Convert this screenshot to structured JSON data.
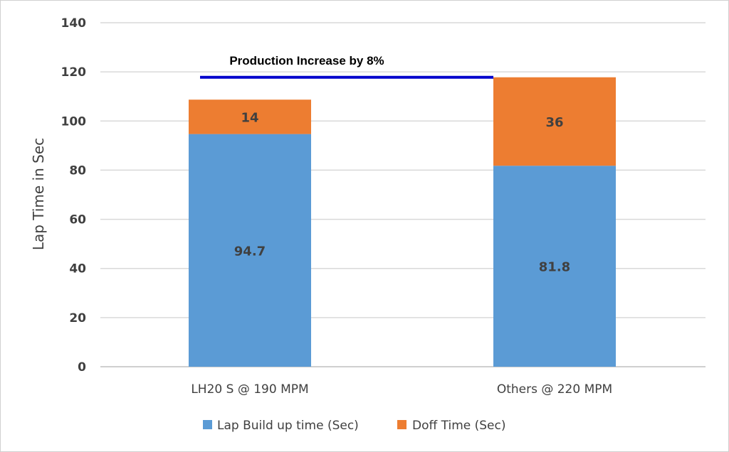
{
  "chart_data": {
    "type": "bar",
    "stacked": true,
    "categories": [
      "LH20 S @ 190 MPM",
      "Others @ 220 MPM"
    ],
    "series": [
      {
        "name": "Lap Build up time (Sec)",
        "values": [
          94.7,
          81.8
        ],
        "color": "#5b9bd5",
        "labels": [
          "94.7",
          "81.8"
        ]
      },
      {
        "name": "Doff Time (Sec)",
        "values": [
          14,
          36
        ],
        "color": "#ed7d31",
        "labels": [
          "14",
          "36"
        ]
      }
    ],
    "title": "",
    "xlabel": "",
    "ylabel": "Lap Time in Sec",
    "ylim": [
      0,
      140
    ],
    "yticks": [
      0,
      20,
      40,
      60,
      80,
      100,
      120,
      140
    ],
    "ytick_labels": [
      "0",
      "20",
      "40",
      "60",
      "80",
      "100",
      "120",
      "140"
    ],
    "grid": true,
    "legend_position": "bottom",
    "annotation": {
      "text": "Production Increase  by 8%",
      "line_value": 117.8,
      "line_color": "#0000cc"
    }
  }
}
